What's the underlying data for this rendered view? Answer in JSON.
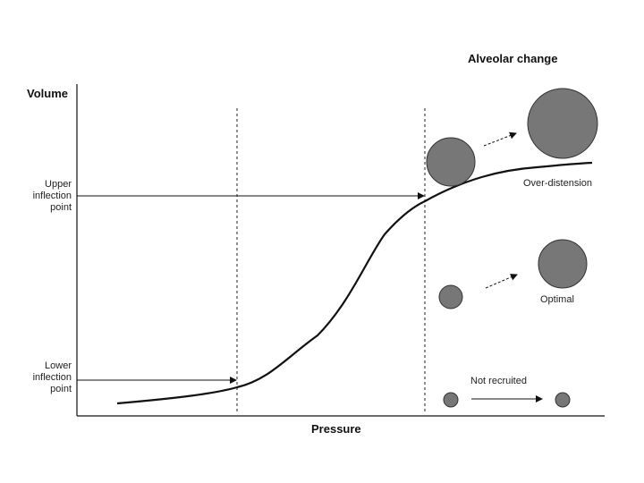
{
  "diagram": {
    "title": "Alveolar change",
    "y_axis_label": "Volume",
    "x_axis_label": "Pressure",
    "upper_point": [
      "Upper",
      "inflection",
      "point"
    ],
    "lower_point": [
      "Lower",
      "inflection",
      "point"
    ],
    "states": {
      "over_distension": "Over-distension",
      "optimal": "Optimal",
      "not_recruited": "Not recruited"
    },
    "colors": {
      "alveolus_fill": "#777777",
      "line": "#111111"
    }
  }
}
